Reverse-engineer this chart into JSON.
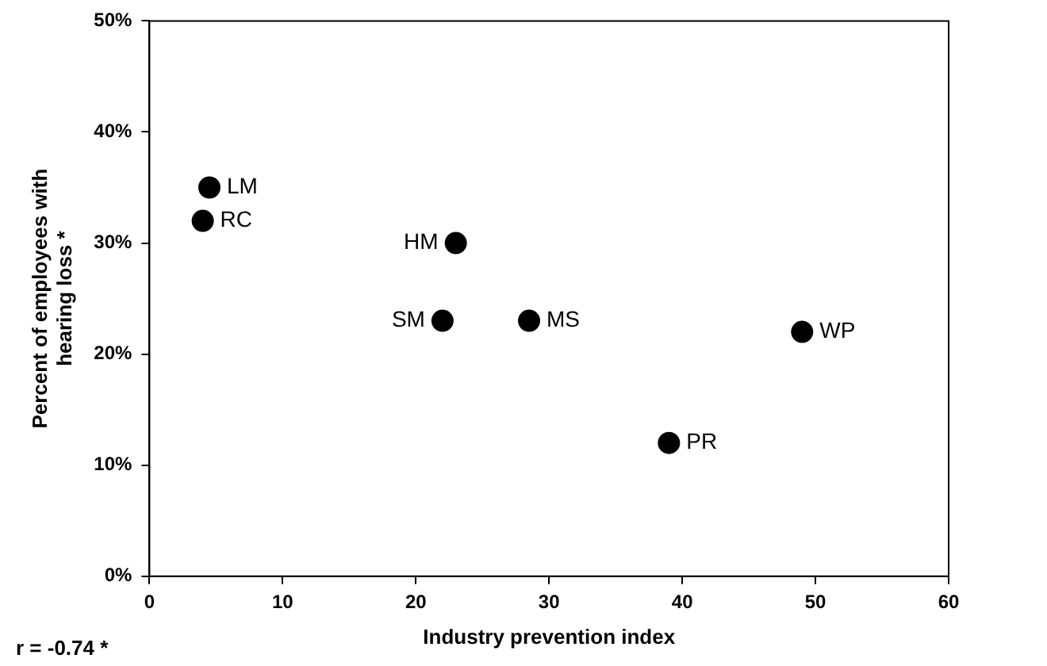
{
  "chart_data": {
    "type": "scatter",
    "xlabel": "Industry prevention index",
    "ylabel": "Percent of employees with hearing loss *",
    "x": [
      4.5,
      4,
      23,
      22,
      28.5,
      49,
      39
    ],
    "values": [
      35,
      32,
      30,
      23,
      23,
      22,
      12
    ],
    "color": "#000000",
    "marker": "circle",
    "grid": false,
    "legend": false,
    "xlim": [
      0,
      60
    ],
    "xticks": [
      0,
      10,
      20,
      30,
      40,
      50,
      60
    ],
    "ylim": [
      0,
      50
    ],
    "yticks": [
      {
        "value": 0,
        "label": "0%"
      },
      {
        "value": 10,
        "label": "10%"
      },
      {
        "value": 20,
        "label": "20%"
      },
      {
        "value": 30,
        "label": "30%"
      },
      {
        "value": 40,
        "label": "40%"
      },
      {
        "value": 50,
        "label": "50%"
      }
    ],
    "annotations": [
      {
        "text": "LM",
        "x": 4.5,
        "y": 35
      },
      {
        "text": "RC",
        "x": 4,
        "y": 32
      },
      {
        "text": "HM",
        "x": 23,
        "y": 30
      },
      {
        "text": "SM",
        "x": 22,
        "y": 23
      },
      {
        "text": "MS",
        "x": 28.5,
        "y": 23
      },
      {
        "text": "WP",
        "x": 49,
        "y": 22
      },
      {
        "text": "PR",
        "x": 39,
        "y": 12
      },
      "r = -0.74 *"
    ]
  }
}
